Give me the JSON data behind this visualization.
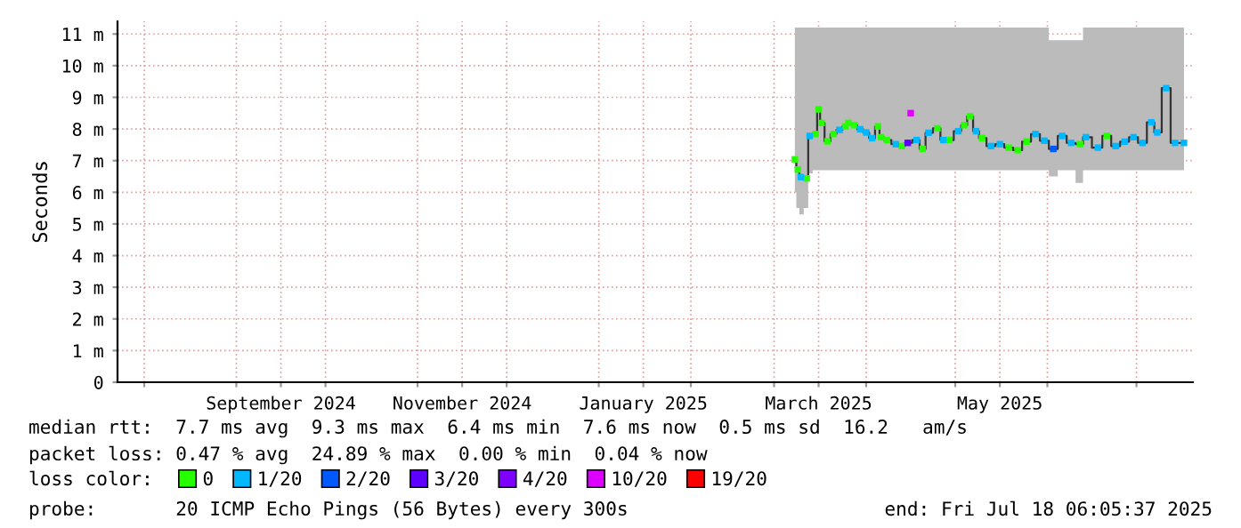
{
  "chart_data": {
    "type": "line",
    "ylabel": "Seconds",
    "legend_title": "loss color:",
    "legend": "bottom",
    "grid": true,
    "marker": "square",
    "xlim": [
      "2024-07-23",
      "2025-07-20"
    ],
    "xticks": [
      {
        "value": "2024-08-01",
        "label": null
      },
      {
        "value": "2024-09-01",
        "label": null
      },
      {
        "value": "2024-09-16",
        "label": "September 2024"
      },
      {
        "value": "2024-10-01",
        "label": null
      },
      {
        "value": "2024-11-01",
        "label": null
      },
      {
        "value": "2024-11-16",
        "label": "November 2024"
      },
      {
        "value": "2024-12-01",
        "label": null
      },
      {
        "value": "2025-01-01",
        "label": null
      },
      {
        "value": "2025-01-16",
        "label": "January 2025"
      },
      {
        "value": "2025-02-01",
        "label": null
      },
      {
        "value": "2025-03-01",
        "label": null
      },
      {
        "value": "2025-03-16",
        "label": "March 2025"
      },
      {
        "value": "2025-04-01",
        "label": null
      },
      {
        "value": "2025-05-01",
        "label": null
      },
      {
        "value": "2025-05-16",
        "label": "May 2025"
      },
      {
        "value": "2025-06-01",
        "label": null
      },
      {
        "value": "2025-07-01",
        "label": null
      }
    ],
    "ylim": [
      0,
      11.4
    ],
    "yticks": [
      0,
      {
        "value": 1,
        "label": "1 m"
      },
      {
        "value": 2,
        "label": "2 m"
      },
      {
        "value": 3,
        "label": "3 m"
      },
      {
        "value": 4,
        "label": "4 m"
      },
      {
        "value": 5,
        "label": "5 m"
      },
      {
        "value": 6,
        "label": "6 m"
      },
      {
        "value": 7,
        "label": "7 m"
      },
      {
        "value": 8,
        "label": "8 m"
      },
      {
        "value": 9,
        "label": "9 m"
      },
      {
        "value": 10,
        "label": "10 m"
      },
      {
        "value": 11,
        "label": "11 m"
      }
    ],
    "series": [
      {
        "color": "#333333",
        "marker": "none",
        "x": [
          "2025-03-08",
          "2025-03-09",
          "2025-03-10",
          "2025-03-12",
          "2025-03-13",
          "2025-03-15",
          "2025-03-16",
          "2025-03-17",
          "2025-03-19",
          "2025-03-21",
          "2025-03-23",
          "2025-03-25",
          "2025-03-26",
          "2025-03-28",
          "2025-03-30",
          "2025-04-01",
          "2025-04-03",
          "2025-04-05",
          "2025-04-06",
          "2025-04-08",
          "2025-04-11",
          "2025-04-13",
          "2025-04-15",
          "2025-04-18",
          "2025-04-20",
          "2025-04-22",
          "2025-04-25",
          "2025-04-27",
          "2025-04-29",
          "2025-05-02",
          "2025-05-04",
          "2025-05-06",
          "2025-05-08",
          "2025-05-10",
          "2025-05-13",
          "2025-05-16",
          "2025-05-19",
          "2025-05-22",
          "2025-05-25",
          "2025-05-28",
          "2025-05-31",
          "2025-06-03",
          "2025-06-06",
          "2025-06-09",
          "2025-06-12",
          "2025-06-14",
          "2025-06-18",
          "2025-06-21",
          "2025-06-24",
          "2025-06-27",
          "2025-06-30",
          "2025-07-03",
          "2025-07-06",
          "2025-07-08",
          "2025-07-11",
          "2025-07-14",
          "2025-07-17"
        ],
        "values": [
          7.04,
          6.72,
          6.48,
          6.44,
          7.78,
          7.84,
          8.62,
          8.19,
          7.61,
          7.84,
          7.97,
          8.08,
          8.19,
          8.12,
          7.99,
          7.89,
          7.71,
          8.08,
          7.74,
          7.65,
          7.52,
          7.46,
          7.56,
          7.65,
          7.37,
          7.88,
          8.02,
          7.65,
          7.65,
          7.93,
          8.12,
          8.4,
          7.93,
          7.71,
          7.46,
          7.52,
          7.41,
          7.33,
          7.6,
          7.84,
          7.63,
          7.37,
          7.78,
          7.56,
          7.52,
          7.74,
          7.41,
          7.78,
          7.46,
          7.6,
          7.74,
          7.56,
          8.21,
          7.89,
          9.29,
          7.56,
          7.56
        ],
        "lower": [
          6.0,
          5.5,
          5.3,
          5.5,
          6.6,
          6.7,
          6.7,
          6.7,
          6.7,
          6.7,
          6.7,
          6.7,
          6.7,
          6.7,
          6.7,
          6.7,
          6.7,
          6.7,
          6.7,
          6.7,
          6.7,
          6.7,
          6.7,
          6.7,
          6.7,
          6.7,
          6.7,
          6.7,
          6.7,
          6.7,
          6.7,
          6.7,
          6.7,
          6.7,
          6.7,
          6.7,
          6.7,
          6.7,
          6.7,
          6.7,
          6.7,
          6.5,
          6.7,
          6.7,
          6.3,
          6.7,
          6.7,
          6.7,
          6.7,
          6.7,
          6.7,
          6.7,
          6.7,
          6.7,
          6.7,
          6.7,
          6.7
        ],
        "upper": [
          11.2,
          11.2,
          11.2,
          11.2,
          11.2,
          11.2,
          11.2,
          11.2,
          11.2,
          11.2,
          11.2,
          11.2,
          11.2,
          11.2,
          11.2,
          11.2,
          11.2,
          11.2,
          11.2,
          11.2,
          11.2,
          11.2,
          11.2,
          11.2,
          11.2,
          11.2,
          11.2,
          11.2,
          11.2,
          11.2,
          11.2,
          11.2,
          11.2,
          11.2,
          11.2,
          11.2,
          11.2,
          11.2,
          11.2,
          11.2,
          11.2,
          10.8,
          10.8,
          10.8,
          10.8,
          11.2,
          11.2,
          11.2,
          11.2,
          11.2,
          11.2,
          11.2,
          11.2,
          11.2,
          11.2,
          11.2,
          11.2
        ]
      },
      {
        "name": "0",
        "type": "scatter",
        "color": "#26ff00",
        "x": [
          "2025-03-08",
          "2025-03-09",
          "2025-03-12",
          "2025-03-15",
          "2025-03-16",
          "2025-03-17",
          "2025-03-19",
          "2025-03-21",
          "2025-03-25",
          "2025-03-26",
          "2025-03-28",
          "2025-04-05",
          "2025-04-06",
          "2025-04-08",
          "2025-04-13",
          "2025-04-20",
          "2025-04-25",
          "2025-04-29",
          "2025-05-04",
          "2025-05-06",
          "2025-05-10",
          "2025-05-19",
          "2025-05-22",
          "2025-05-25",
          "2025-06-12",
          "2025-06-21"
        ],
        "values": [
          7.04,
          6.72,
          6.44,
          7.84,
          8.62,
          8.19,
          7.61,
          7.84,
          8.08,
          8.19,
          8.12,
          8.08,
          7.74,
          7.65,
          7.46,
          7.37,
          8.02,
          7.65,
          8.12,
          8.4,
          7.71,
          7.41,
          7.33,
          7.6,
          7.52,
          7.78
        ]
      },
      {
        "name": "1/20",
        "type": "scatter",
        "color": "#00b8ff",
        "x": [
          "2025-03-10",
          "2025-03-13",
          "2025-03-23",
          "2025-03-30",
          "2025-04-01",
          "2025-04-03",
          "2025-04-11",
          "2025-04-18",
          "2025-04-22",
          "2025-04-27",
          "2025-05-02",
          "2025-05-08",
          "2025-05-13",
          "2025-05-16",
          "2025-05-28",
          "2025-05-31",
          "2025-06-06",
          "2025-06-09",
          "2025-06-14",
          "2025-06-18",
          "2025-06-24",
          "2025-06-27",
          "2025-06-30",
          "2025-07-03",
          "2025-07-06",
          "2025-07-08",
          "2025-07-11",
          "2025-07-14",
          "2025-07-17"
        ],
        "values": [
          6.48,
          7.78,
          7.97,
          7.99,
          7.89,
          7.71,
          7.52,
          7.65,
          7.88,
          7.65,
          7.93,
          7.93,
          7.46,
          7.52,
          7.84,
          7.63,
          7.78,
          7.56,
          7.74,
          7.41,
          7.46,
          7.6,
          7.74,
          7.56,
          8.21,
          7.89,
          9.29,
          7.56,
          7.56
        ]
      },
      {
        "name": "2/20",
        "type": "scatter",
        "color": "#0059ff",
        "x": [
          "2025-06-03"
        ],
        "values": [
          7.37
        ]
      },
      {
        "name": "3/20",
        "type": "scatter",
        "color": "#5e00ff",
        "x": [
          "2025-04-15"
        ],
        "values": [
          7.56
        ]
      },
      {
        "name": "4/20",
        "type": "scatter",
        "color": "#7e00ff"
      },
      {
        "name": "10/20",
        "type": "scatter",
        "color": "#dd00ff",
        "x": [
          "2025-04-16"
        ],
        "values": [
          8.5
        ]
      },
      {
        "name": "19/20",
        "type": "scatter",
        "color": "#ff0000"
      }
    ],
    "annotations": [
      "median rtt:  7.7 ms avg  9.3 ms max  6.4 ms min  7.6 ms now  0.5 ms sd  16.2   am/s",
      "packet loss: 0.47 % avg  24.89 % max  0.00 % min  0.04 % now",
      "probe:       20 ICMP Echo Pings (56 Bytes) every 300s",
      "end: Fri Jul 18 06:05:37 2025"
    ]
  }
}
